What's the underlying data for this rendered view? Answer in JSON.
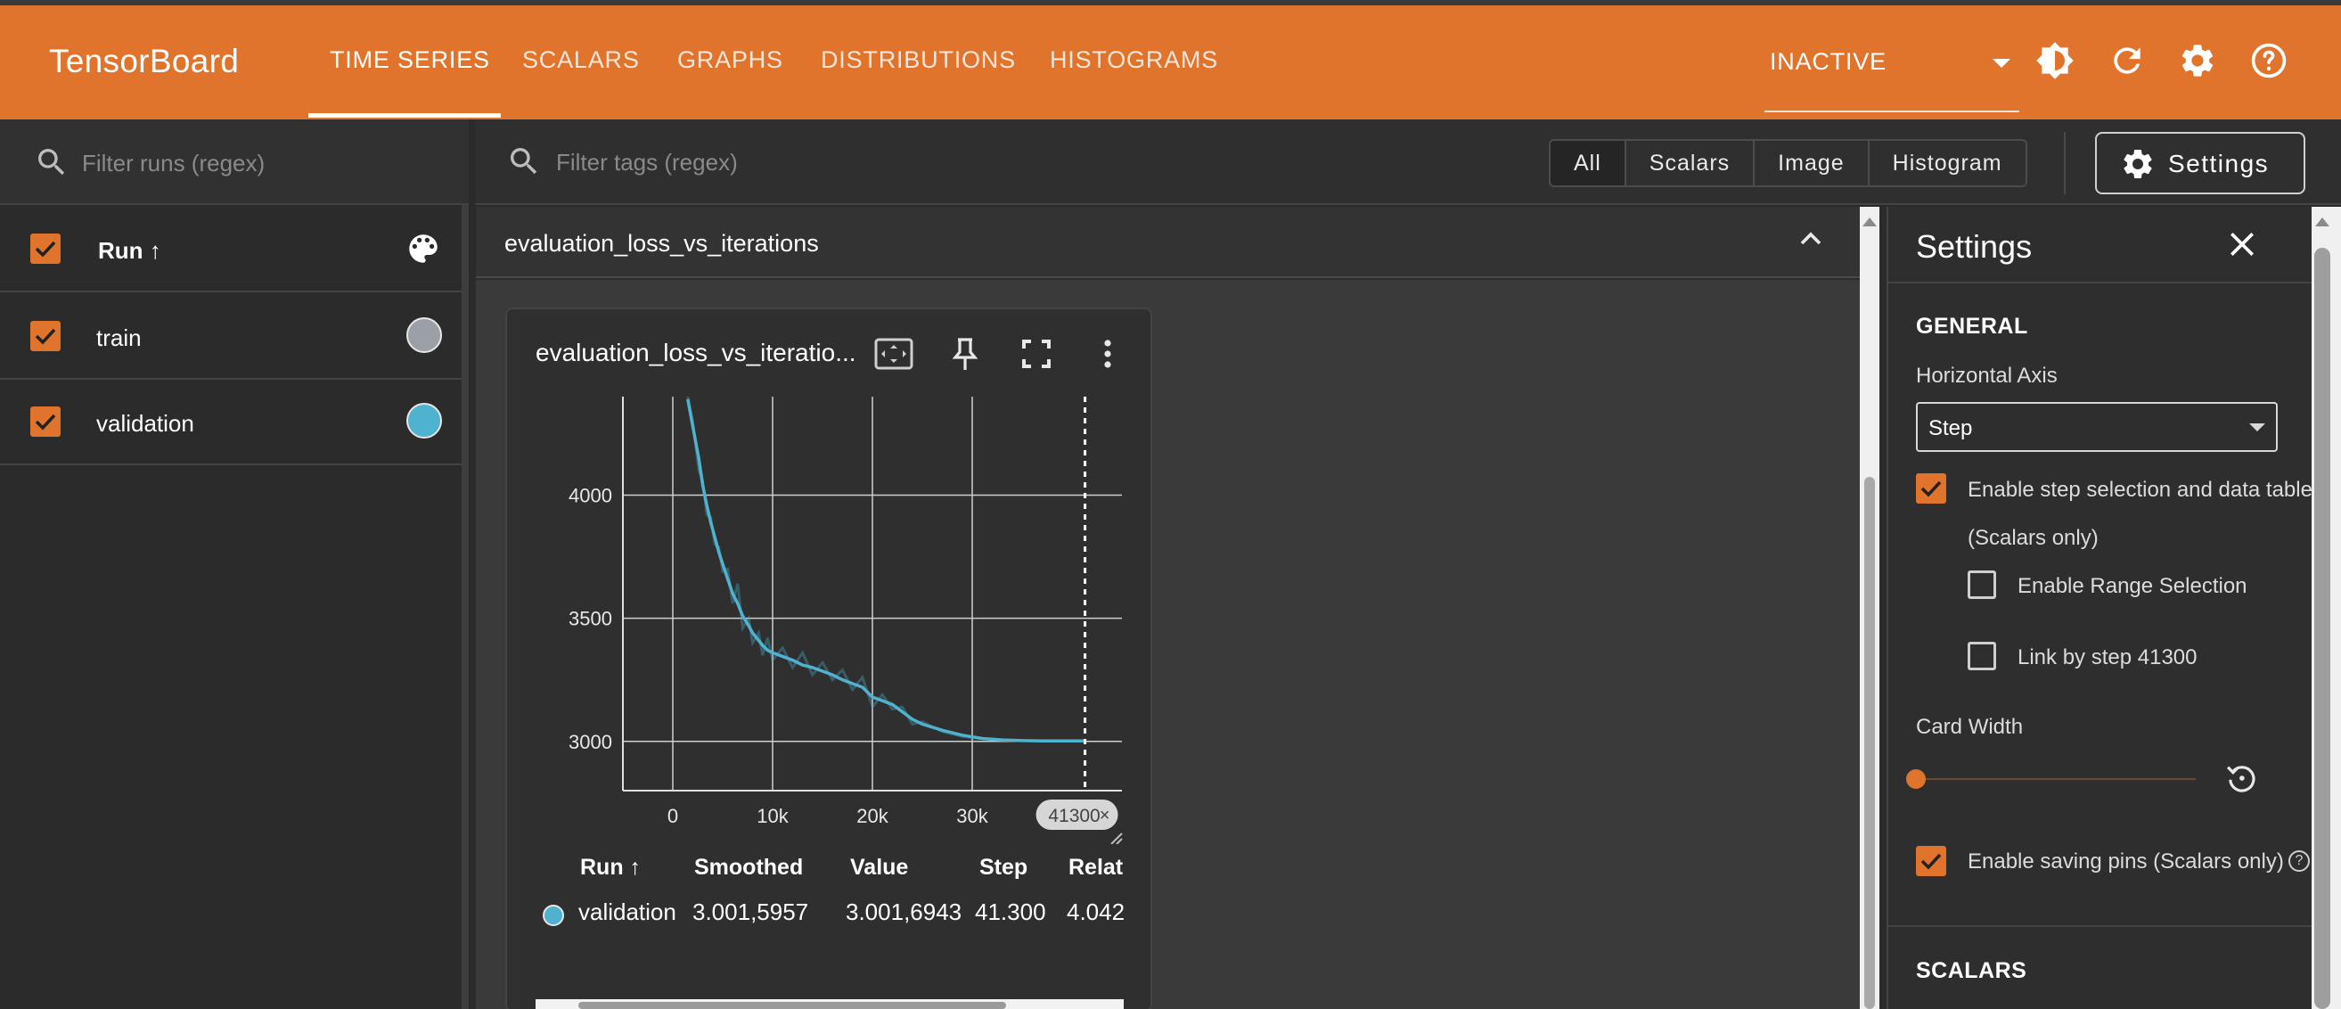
{
  "app": {
    "brand": "TensorBoard",
    "accent_color": "#e0742c",
    "tabs": [
      "TIME SERIES",
      "SCALARS",
      "GRAPHS",
      "DISTRIBUTIONS",
      "HISTOGRAMS"
    ],
    "active_tab": "TIME SERIES",
    "run_state": "INACTIVE",
    "icons": [
      "brightness-icon",
      "refresh-icon",
      "settings-gear-icon",
      "help-icon"
    ]
  },
  "runs_pane": {
    "filter_placeholder": "Filter runs (regex)",
    "header_label": "Run ↑",
    "rows": [
      {
        "label": "train",
        "color": "#9aa0a6",
        "checked": true
      },
      {
        "label": "validation",
        "color": "#4fb3cf",
        "checked": true
      }
    ]
  },
  "filter": {
    "placeholder": "Filter tags (regex)",
    "types": [
      "All",
      "Scalars",
      "Image",
      "Histogram"
    ],
    "active_type": "All",
    "settings_button": "Settings"
  },
  "group": {
    "title": "evaluation_loss_vs_iterations"
  },
  "card": {
    "title": "evaluation_loss_vs_iteratio...",
    "step_chip": "41300",
    "table": {
      "headers": [
        "Run ↑",
        "Smoothed",
        "Value",
        "Step",
        "Relat"
      ],
      "row": {
        "run": "validation",
        "color": "#4fb3cf",
        "smoothed": "3.001,5957",
        "value": "3.001,6943",
        "step": "41.300",
        "relative": "4.042"
      }
    }
  },
  "chart_data": {
    "type": "line",
    "title": "evaluation_loss_vs_iteratio...",
    "xlabel": "",
    "ylabel": "",
    "x_ticks": [
      "0",
      "10k",
      "20k",
      "30k"
    ],
    "y_ticks": [
      "3000",
      "3500",
      "4000"
    ],
    "xlim": [
      -5000,
      45000
    ],
    "ylim": [
      2800,
      4400
    ],
    "grid": true,
    "selected_step": 41300,
    "series": [
      {
        "name": "validation",
        "color": "#4fb3cf",
        "x": [
          1500,
          2000,
          2600,
          3000,
          3400,
          3800,
          4200,
          4600,
          5000,
          5500,
          6000,
          6500,
          7000,
          7600,
          8000,
          8600,
          9000,
          9500,
          10000,
          11000,
          12000,
          13000,
          14000,
          15000,
          16000,
          17000,
          18000,
          19000,
          20000,
          21000,
          22000,
          23000,
          24000,
          25000,
          27000,
          29000,
          31000,
          33000,
          35000,
          37000,
          39000,
          41300
        ],
        "smoothed": [
          4390,
          4280,
          4150,
          4040,
          3960,
          3890,
          3830,
          3770,
          3720,
          3660,
          3600,
          3560,
          3510,
          3470,
          3440,
          3410,
          3390,
          3370,
          3360,
          3345,
          3330,
          3310,
          3300,
          3285,
          3270,
          3250,
          3235,
          3220,
          3180,
          3165,
          3150,
          3120,
          3090,
          3070,
          3045,
          3025,
          3012,
          3006,
          3003,
          3002,
          3001.6,
          3001.6
        ],
        "values": [
          4400,
          4300,
          4100,
          4060,
          3920,
          3910,
          3800,
          3790,
          3690,
          3700,
          3560,
          3640,
          3460,
          3500,
          3400,
          3440,
          3350,
          3420,
          3330,
          3380,
          3300,
          3360,
          3270,
          3320,
          3250,
          3290,
          3210,
          3260,
          3140,
          3190,
          3130,
          3140,
          3070,
          3080,
          3040,
          3020,
          3010,
          3005,
          3003,
          3002,
          3001.7,
          3001.7
        ]
      }
    ]
  },
  "settings_panel": {
    "title": "Settings",
    "general_heading": "GENERAL",
    "horizontal_axis_label": "Horizontal Axis",
    "horizontal_axis_value": "Step",
    "enable_step_selection": "Enable step selection and data table",
    "scalars_only": "(Scalars only)",
    "enable_range_selection": "Enable Range Selection",
    "link_by_step": "Link by step 41300",
    "card_width_label": "Card Width",
    "card_width_level": 0,
    "enable_saving_pins": "Enable saving pins (Scalars only)",
    "scalars_heading": "SCALARS"
  }
}
